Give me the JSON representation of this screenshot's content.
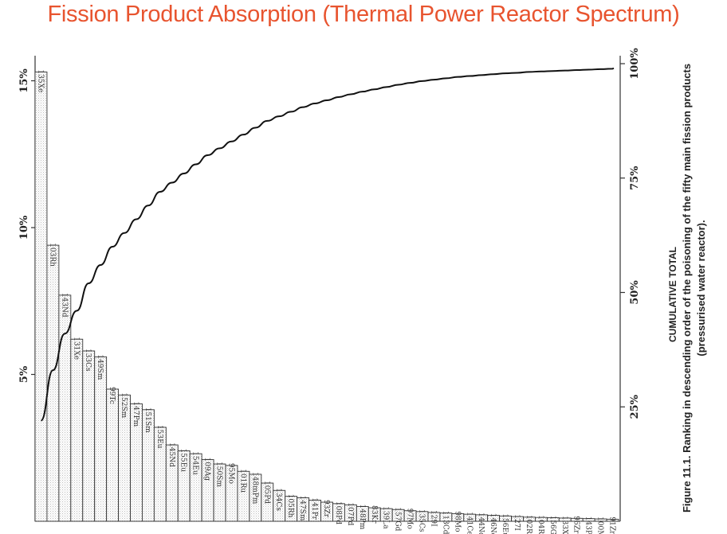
{
  "title": "Fission Product Absorption (Thermal Power Reactor Spectrum)",
  "cumulative_label": "CUMULATIVE TOTAL",
  "caption_line1": "Figure 11.1. Ranking in descending order of the poisoning of the fifty main fission products",
  "caption_line2": "(pressurised water reactor).",
  "chart_data": {
    "type": "bar",
    "title": "Fission Product Absorption (Thermal Power Reactor Spectrum)",
    "left_axis": {
      "ticks": [
        "5%",
        "10%",
        "15%"
      ],
      "tick_values": [
        5,
        10,
        15
      ],
      "range": [
        0,
        16
      ]
    },
    "right_axis": {
      "ticks": [
        "25%",
        "50%",
        "75%",
        "100%"
      ],
      "tick_values": [
        25,
        50,
        75,
        100
      ],
      "range": [
        0,
        100
      ]
    },
    "categories": [
      "135Xe",
      "103Rh",
      "143Nd",
      "131Xe",
      "133Cs",
      "149Sm",
      "99Tc",
      "152Sm",
      "147Pm",
      "151Sm",
      "153Eu",
      "145Nd",
      "155Eu",
      "154Eu",
      "109Ag",
      "150Sm",
      "95Mo",
      "101Ru",
      "148mPm",
      "105Pd",
      "134Cs",
      "105Rh",
      "147Sm",
      "141Pr",
      "93Zr",
      "108Pd",
      "107Pd",
      "148Pm",
      "83Kr",
      "139La",
      "157Gd",
      "97Mo",
      "135Cs",
      "129I",
      "113Cd",
      "98Mo",
      "141Ce",
      "144Nd",
      "146Nd",
      "156Eu",
      "127I",
      "102Ru",
      "104Ru",
      "156Gd",
      "133Xe",
      "96Zr",
      "143Pr",
      "100Mo",
      "91Zr"
    ],
    "values": [
      15.3,
      9.4,
      7.7,
      6.2,
      5.8,
      5.6,
      4.5,
      4.3,
      4.0,
      3.8,
      3.2,
      2.6,
      2.4,
      2.3,
      2.1,
      1.95,
      1.9,
      1.7,
      1.6,
      1.3,
      1.05,
      0.85,
      0.8,
      0.72,
      0.65,
      0.6,
      0.56,
      0.5,
      0.46,
      0.43,
      0.4,
      0.36,
      0.33,
      0.3,
      0.28,
      0.26,
      0.24,
      0.22,
      0.2,
      0.18,
      0.16,
      0.14,
      0.13,
      0.12,
      0.11,
      0.1,
      0.09,
      0.08,
      0.07
    ],
    "cumulative_series": {
      "name": "CUMULATIVE TOTAL",
      "values": [
        22,
        33,
        41,
        46,
        52,
        56,
        60,
        63,
        66,
        69,
        72,
        74,
        76,
        78,
        80,
        81.5,
        83,
        84.5,
        86,
        87.5,
        88.5,
        89.5,
        90.5,
        91.3,
        92,
        92.7,
        93.3,
        93.9,
        94.4,
        94.9,
        95.4,
        95.8,
        96.2,
        96.5,
        96.8,
        97.1,
        97.3,
        97.5,
        97.7,
        97.9,
        98.0,
        98.2,
        98.3,
        98.4,
        98.5,
        98.6,
        98.7,
        98.8,
        98.9
      ]
    }
  }
}
